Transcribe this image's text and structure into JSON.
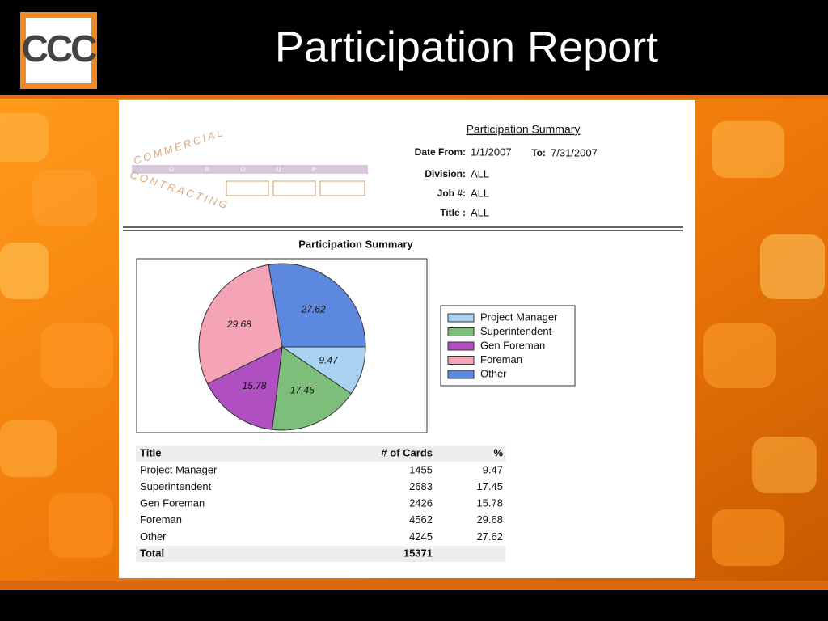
{
  "slide_title": "Participation Report",
  "logo": "CCC",
  "company": {
    "line1": "COMMERCIAL",
    "line2": "CONTRACTING",
    "group": "G R O U P"
  },
  "report": {
    "heading": "Participation Summary",
    "fields": [
      {
        "label": "Date From:",
        "value": "1/1/2007"
      },
      {
        "label": "To:",
        "value": "7/31/2007"
      },
      {
        "label": "Division:",
        "value": "ALL"
      },
      {
        "label": "Job #:",
        "value": "ALL"
      },
      {
        "label": "Title :",
        "value": "ALL"
      }
    ]
  },
  "chart_data": {
    "type": "pie",
    "title": "Participation Summary",
    "categories": [
      "Project Manager",
      "Superintendent",
      "Gen Foreman",
      "Foreman",
      "Other"
    ],
    "values": [
      9.47,
      17.45,
      15.78,
      29.68,
      27.62
    ],
    "colors": [
      "#a8d2f0",
      "#7dbf7a",
      "#b04fc2",
      "#f5a3b7",
      "#5c88e0"
    ],
    "legend": "right"
  },
  "table": {
    "header": [
      "Title",
      "# of Cards",
      "%"
    ],
    "rows": [
      [
        "Project Manager",
        1455,
        9.47
      ],
      [
        "Superintendent",
        2683,
        17.45
      ],
      [
        "Gen Foreman",
        2426,
        15.78
      ],
      [
        "Foreman",
        4562,
        29.68
      ],
      [
        "Other",
        4245,
        27.62
      ]
    ],
    "total": [
      "Total",
      15371
    ]
  }
}
